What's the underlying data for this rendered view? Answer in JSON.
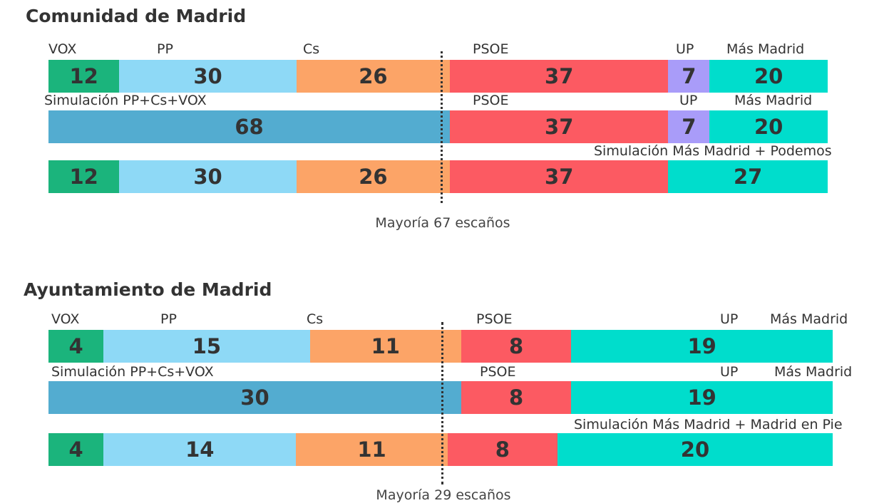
{
  "colors": {
    "VOX": "#1bb47c",
    "PP": "#8ed9f6",
    "Cs": "#fca467",
    "PSOE": "#fc5a62",
    "UP": "#a99cf9",
    "Más Madrid": "#00ddcc",
    "Sim": "#53acd0"
  },
  "chart_data": [
    {
      "type": "bar",
      "title": "Comunidad de Madrid",
      "total": 132,
      "majority_label": "Mayoría 67 escaños",
      "majority": 67,
      "rows": [
        {
          "labels": [
            "VOX",
            "PP",
            "Cs",
            "PSOE",
            "UP",
            "Más Madrid"
          ],
          "segments": [
            {
              "party": "VOX",
              "value": 12
            },
            {
              "party": "PP",
              "value": 30
            },
            {
              "party": "Cs",
              "value": 26
            },
            {
              "party": "PSOE",
              "value": 37
            },
            {
              "party": "UP",
              "value": 7
            },
            {
              "party": "Más Madrid",
              "value": 20
            }
          ]
        },
        {
          "labels": [
            "Simulación PP+Cs+VOX",
            "PSOE",
            "UP",
            "Más Madrid"
          ],
          "segments": [
            {
              "party": "Sim",
              "value": 68
            },
            {
              "party": "PSOE",
              "value": 37
            },
            {
              "party": "UP",
              "value": 7
            },
            {
              "party": "Más Madrid",
              "value": 20
            }
          ]
        },
        {
          "labels": [
            "Simulación Más Madrid + Podemos"
          ],
          "segments": [
            {
              "party": "VOX",
              "value": 12
            },
            {
              "party": "PP",
              "value": 30
            },
            {
              "party": "Cs",
              "value": 26
            },
            {
              "party": "PSOE",
              "value": 37
            },
            {
              "party": "Más Madrid",
              "value": 27
            }
          ]
        }
      ]
    },
    {
      "type": "bar",
      "title": "Ayuntamiento de Madrid",
      "total": 57,
      "majority_label": "Mayoría 29 escaños",
      "majority": 29,
      "rows": [
        {
          "labels": [
            "VOX",
            "PP",
            "Cs",
            "PSOE",
            "UP",
            "Más Madrid"
          ],
          "segments": [
            {
              "party": "VOX",
              "value": 4
            },
            {
              "party": "PP",
              "value": 15
            },
            {
              "party": "Cs",
              "value": 11
            },
            {
              "party": "PSOE",
              "value": 8
            },
            {
              "party": "Más Madrid",
              "value": 19
            }
          ]
        },
        {
          "labels": [
            "Simulación PP+Cs+VOX",
            "PSOE",
            "UP",
            "Más Madrid"
          ],
          "segments": [
            {
              "party": "Sim",
              "value": 30
            },
            {
              "party": "PSOE",
              "value": 8
            },
            {
              "party": "Más Madrid",
              "value": 19
            }
          ]
        },
        {
          "labels": [
            "Simulación Más Madrid + Madrid en Pie"
          ],
          "segments": [
            {
              "party": "VOX",
              "value": 4
            },
            {
              "party": "PP",
              "value": 14
            },
            {
              "party": "Cs",
              "value": 11
            },
            {
              "party": "PSOE",
              "value": 8
            },
            {
              "party": "Más Madrid",
              "value": 20
            }
          ]
        }
      ]
    }
  ]
}
